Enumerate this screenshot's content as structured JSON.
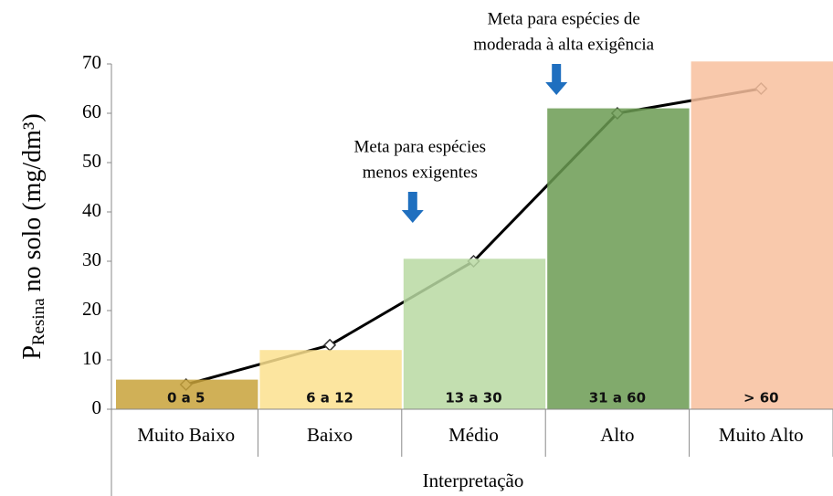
{
  "chart_data": {
    "type": "bar",
    "y_label": {
      "main": "P",
      "sub": "Resina",
      "rest": " no solo (mg/dm³)"
    },
    "x_label": "Interpretação",
    "categories": [
      "Muito Baixo",
      "Baixo",
      "Médio",
      "Alto",
      "Muito Alto"
    ],
    "series": [
      {
        "type": "bar",
        "colors": [
          "#c8a23a",
          "#fbe08e",
          "#b8d9a2",
          "#6b9b52",
          "#f8bf9e"
        ],
        "values": [
          6,
          12,
          30.5,
          61,
          70.5
        ],
        "value_labels": [
          "0 a 5",
          "6 a 12",
          "13 a 30",
          "31 a 60",
          "> 60"
        ]
      },
      {
        "type": "line",
        "color": "#000000",
        "values": [
          5,
          13,
          30,
          60,
          65
        ]
      }
    ],
    "ylim": [
      0,
      70
    ],
    "yticks": [
      0,
      10,
      20,
      30,
      40,
      50,
      60,
      70
    ],
    "annotations": [
      {
        "lines": [
          "Meta para espécies",
          "menos exigentes"
        ],
        "category": 2
      },
      {
        "lines": [
          "Meta para espécies de",
          "moderada à alta exigência"
        ],
        "category": 3
      }
    ]
  }
}
